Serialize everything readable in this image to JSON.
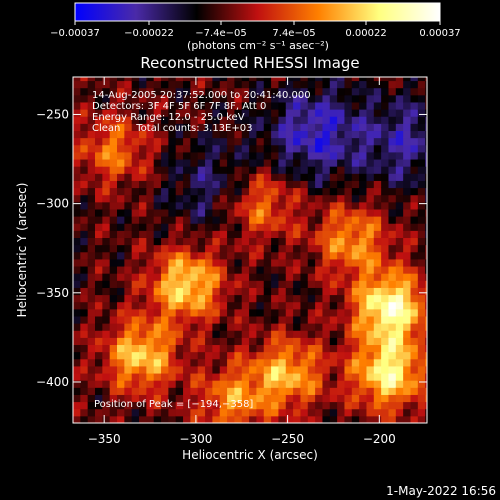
{
  "chart_data": {
    "type": "heatmap",
    "title": "Reconstructed RHESSI Image",
    "xlabel": "Heliocentric X (arcsec)",
    "ylabel": "Heliocentric Y (arcsec)",
    "xlim": [
      -367,
      -174
    ],
    "ylim": [
      -423,
      -229
    ],
    "x_ticks": [
      -350,
      -300,
      -250,
      -200
    ],
    "x_tick_labels": [
      "−350",
      "−300",
      "−250",
      "−200"
    ],
    "y_ticks": [
      -250,
      -300,
      -350,
      -400
    ],
    "y_tick_labels": [
      "−250",
      "−300",
      "−350",
      "−400"
    ],
    "colorbar": {
      "range": [
        -0.00037,
        0.00037
      ],
      "tick_labels": [
        "−0.00037",
        "−0.00022",
        "−7.4e−05",
        "7.4e−05",
        "0.00022",
        "0.00037"
      ],
      "unit_label": "(photons cm⁻² s⁻¹ asec⁻²)",
      "stops": [
        "#0000ff",
        "#4a2aa8",
        "#000000",
        "#c01010",
        "#ff8000",
        "#ffff80",
        "#ffffff"
      ]
    },
    "annotations": [
      "14-Aug-2005 20:37:52.000 to 20:41:40.000",
      "Detectors: 3F 4F 5F 6F 7F 8F, Att 0",
      "Energy Range: 12.0 - 25.0 keV",
      "Clean     Total counts: 3.13E+03"
    ],
    "peak_label": "Position of Peak = [−194,−358]",
    "peak": [
      -194,
      -358
    ],
    "bright_regions": [
      {
        "x": -305,
        "y": -345,
        "level": 0.0003
      },
      {
        "x": -330,
        "y": -385,
        "level": 0.00028
      },
      {
        "x": -345,
        "y": -270,
        "level": 0.00018
      },
      {
        "x": -265,
        "y": -300,
        "level": 0.0002
      },
      {
        "x": -215,
        "y": -320,
        "level": 0.00022
      },
      {
        "x": -194,
        "y": -358,
        "level": 0.00037
      },
      {
        "x": -195,
        "y": -395,
        "level": 0.00033
      },
      {
        "x": -250,
        "y": -395,
        "level": 0.00025
      },
      {
        "x": -280,
        "y": -410,
        "level": 0.0002
      }
    ],
    "dim_regions": [
      {
        "x": -235,
        "y": -260,
        "level": -0.0002
      },
      {
        "x": -290,
        "y": -290,
        "level": -0.00012
      },
      {
        "x": -185,
        "y": -265,
        "level": -0.00015
      }
    ],
    "grid": false
  },
  "footer": {
    "datetime": "1-May-2022 16:56"
  }
}
